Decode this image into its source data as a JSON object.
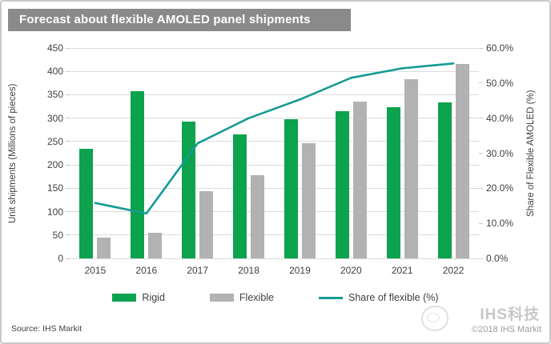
{
  "title": "Forecast about flexible AMOLED panel shipments",
  "source": "Source: IHS Markit",
  "watermark": {
    "brand": "IHS科技",
    "copyright": "©2018 IHS Markit"
  },
  "chart_data": {
    "type": "combo",
    "categories": [
      "2015",
      "2016",
      "2017",
      "2018",
      "2019",
      "2020",
      "2021",
      "2022"
    ],
    "series": [
      {
        "name": "Rigid",
        "type": "bar",
        "axis": "left",
        "color": "#0ca24e",
        "values": [
          235,
          358,
          292,
          266,
          297,
          315,
          324,
          333
        ]
      },
      {
        "name": "Flexible",
        "type": "bar",
        "axis": "left",
        "color": "#b2b2b2",
        "values": [
          45,
          55,
          143,
          178,
          246,
          335,
          384,
          416
        ]
      },
      {
        "name": "Share of flexible (%)",
        "type": "line",
        "axis": "right",
        "color": "#159a94",
        "values": [
          15.8,
          12.8,
          32.8,
          40.0,
          45.3,
          51.5,
          54.2,
          55.6
        ]
      }
    ],
    "left_axis": {
      "label": "Unit shipments (Millions of pieces)",
      "min": 0,
      "max": 450,
      "step": 50,
      "ticks": [
        "0",
        "50",
        "100",
        "150",
        "200",
        "250",
        "300",
        "350",
        "400",
        "450"
      ]
    },
    "right_axis": {
      "label": "Share of Flexible AMOLED (%)",
      "min": 0,
      "max": 60,
      "step": 10,
      "ticks": [
        "0.0%",
        "10.0%",
        "20.0%",
        "30.0%",
        "40.0%",
        "50.0%",
        "60.0%"
      ]
    },
    "grid": true,
    "legend_position": "bottom"
  }
}
